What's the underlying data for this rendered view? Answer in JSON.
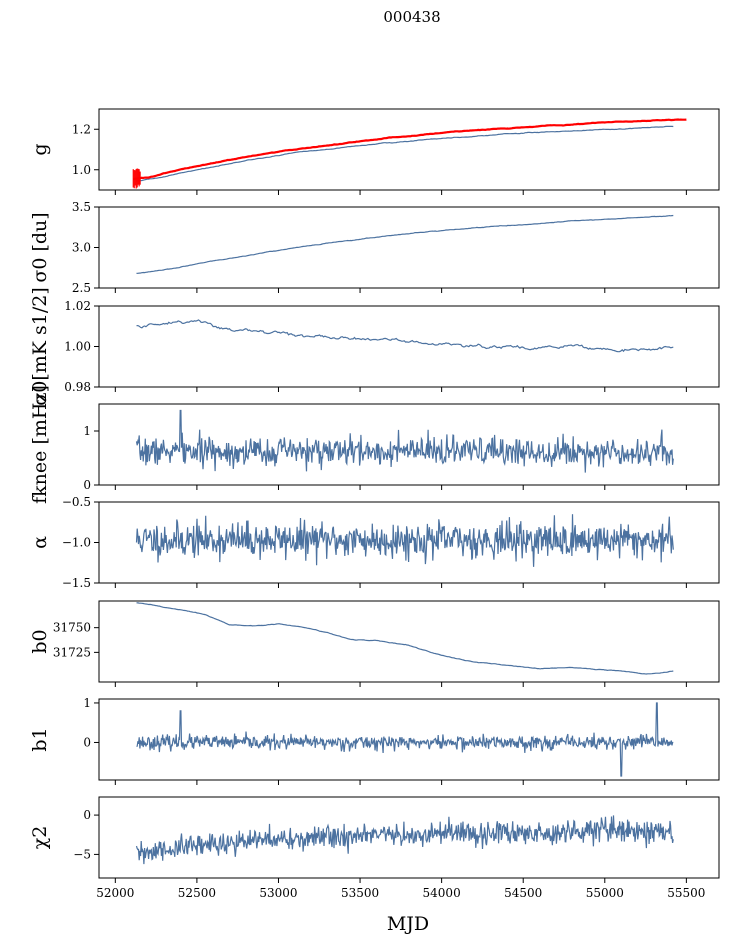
{
  "figure": {
    "title": "000438",
    "xlabel": "MJD",
    "xlim": [
      51900,
      55700
    ],
    "xticks": [
      52000,
      52500,
      53000,
      53500,
      54000,
      54500,
      55000,
      55500
    ],
    "series_color": "#4c72a0",
    "model_color": "#ff0000"
  },
  "chart_data": [
    {
      "type": "line",
      "ylabel": "g",
      "ylim": [
        0.9,
        1.3
      ],
      "yticks": [
        1.0,
        1.2
      ],
      "ytick_labels": [
        "1.0",
        "1.2"
      ],
      "series": [
        {
          "name": "",
          "role": "data",
          "x": [
            52130,
            52300,
            52500,
            52800,
            53100,
            53400,
            53700,
            54000,
            54300,
            54600,
            54900,
            55200,
            55420
          ],
          "values": [
            0.945,
            0.965,
            1.0,
            1.045,
            1.085,
            1.11,
            1.135,
            1.155,
            1.17,
            1.185,
            1.195,
            1.205,
            1.215
          ]
        },
        {
          "name": "",
          "role": "model",
          "x": [
            52110,
            52200,
            52400,
            52700,
            53000,
            53300,
            53600,
            53900,
            54200,
            54500,
            54800,
            55100,
            55400,
            55500
          ],
          "values": [
            0.955,
            0.962,
            1.0,
            1.05,
            1.09,
            1.12,
            1.15,
            1.175,
            1.195,
            1.21,
            1.225,
            1.238,
            1.245,
            1.247
          ]
        }
      ]
    },
    {
      "type": "line",
      "ylabel": "σ0 [du]",
      "ylim": [
        2.5,
        3.5
      ],
      "yticks": [
        2.5,
        3.0,
        3.5
      ],
      "ytick_labels": [
        "2.5",
        "3.0",
        "3.5"
      ],
      "series": [
        {
          "name": "",
          "x": [
            52130,
            52300,
            52500,
            52800,
            53100,
            53400,
            53700,
            54000,
            54300,
            54600,
            54900,
            55200,
            55420
          ],
          "values": [
            2.68,
            2.72,
            2.8,
            2.9,
            3.0,
            3.08,
            3.15,
            3.21,
            3.26,
            3.3,
            3.34,
            3.37,
            3.39
          ]
        }
      ]
    },
    {
      "type": "line",
      "ylabel": "σ0[mK s1/2]",
      "ylim": [
        0.98,
        1.02
      ],
      "yticks": [
        0.98,
        1.0,
        1.02
      ],
      "ytick_labels": [
        "0.98",
        "1.00",
        "1.02"
      ],
      "series": [
        {
          "name": "",
          "x": [
            52130,
            52350,
            52550,
            52700,
            52900,
            53100,
            53300,
            53500,
            53700,
            53900,
            54100,
            54300,
            54500,
            54700,
            54900,
            55100,
            55300,
            55420
          ],
          "values": [
            1.01,
            1.011,
            1.012,
            1.008,
            1.007,
            1.006,
            1.005,
            1.003,
            1.003,
            1.002,
            1.001,
            1.0,
            0.999,
            1.0,
            0.999,
            0.998,
            0.999,
            0.998
          ]
        }
      ]
    },
    {
      "type": "line",
      "ylabel": "fknee [mHz]",
      "ylim": [
        0,
        1.5
      ],
      "yticks": [
        0,
        1
      ],
      "ytick_labels": [
        "0",
        "1"
      ],
      "noise": {
        "mean": 0.62,
        "sd": 0.13,
        "n": 800,
        "seed": 7,
        "spike_x": 52400,
        "spike_value": 1.38
      },
      "series": [
        {
          "name": "",
          "x_range": [
            52130,
            55420
          ]
        }
      ]
    },
    {
      "type": "line",
      "ylabel": "α",
      "ylim": [
        -1.5,
        -0.5
      ],
      "yticks": [
        -1.5,
        -1.0,
        -0.5
      ],
      "ytick_labels": [
        "−1.5",
        "−1.0",
        "−0.5"
      ],
      "noise": {
        "mean": -0.97,
        "sd": 0.11,
        "n": 800,
        "seed": 11
      },
      "series": [
        {
          "name": "",
          "x_range": [
            52130,
            55420
          ]
        }
      ]
    },
    {
      "type": "line",
      "ylabel": "b0",
      "ylim": [
        31695,
        31777
      ],
      "yticks": [
        31725,
        31750
      ],
      "ytick_labels": [
        "31725",
        "31750"
      ],
      "series": [
        {
          "name": "",
          "x": [
            52130,
            52200,
            52400,
            52550,
            52700,
            52900,
            53000,
            53100,
            53300,
            53450,
            53600,
            53800,
            54000,
            54200,
            54400,
            54600,
            54800,
            55000,
            55100,
            55250,
            55350,
            55420
          ],
          "values": [
            31775,
            31774,
            31768,
            31763,
            31753,
            31752,
            31754,
            31752,
            31745,
            31738,
            31737,
            31732,
            31722,
            31715,
            31712,
            31709,
            31710,
            31707,
            31706,
            31703,
            31704,
            31706
          ]
        }
      ]
    },
    {
      "type": "line",
      "ylabel": "b1",
      "ylim": [
        -0.95,
        1.1
      ],
      "yticks": [
        0,
        1
      ],
      "ytick_labels": [
        "0",
        "1"
      ],
      "noise": {
        "mean": 0.0,
        "sd": 0.09,
        "n": 800,
        "seed": 23,
        "spike_x": 52400,
        "spike_value": 0.8,
        "spike2_x": 55320,
        "spike2_value": 1.0,
        "dip_x": 55100,
        "dip_value": -0.85
      },
      "series": [
        {
          "name": "",
          "x_range": [
            52130,
            55420
          ]
        }
      ]
    },
    {
      "type": "line",
      "ylabel": "χ2",
      "ylim": [
        -8,
        2.3
      ],
      "yticks": [
        -5,
        0
      ],
      "ytick_labels": [
        "−5",
        "0"
      ],
      "noise": {
        "trend": [
          [
            52130,
            -5.0
          ],
          [
            52600,
            -3.6
          ],
          [
            53100,
            -3.0
          ],
          [
            53600,
            -2.6
          ],
          [
            54100,
            -2.4
          ],
          [
            54600,
            -2.3
          ],
          [
            55000,
            -1.6
          ],
          [
            55420,
            -2.4
          ]
        ],
        "sd": 0.75,
        "n": 800,
        "seed": 31
      },
      "series": [
        {
          "name": "",
          "x_range": [
            52130,
            55420
          ]
        }
      ]
    }
  ]
}
